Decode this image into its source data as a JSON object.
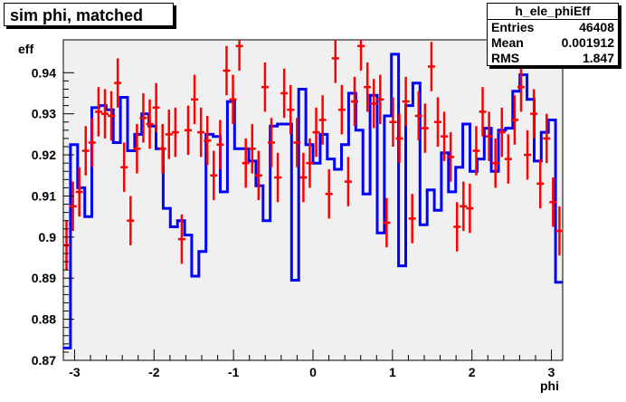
{
  "title": "sim phi, matched",
  "stats": {
    "name": "h_ele_phiEff",
    "rows": [
      {
        "label": "Entries",
        "value": "46408"
      },
      {
        "label": "Mean",
        "value": "0.001912"
      },
      {
        "label": "RMS",
        "value": "1.847"
      }
    ]
  },
  "chart_data": {
    "type": "line",
    "xlabel": "phi",
    "ylabel": "eff",
    "xlim": [
      -3.1416,
      3.1416
    ],
    "ylim": [
      0.87,
      0.948
    ],
    "grid": false,
    "xticks": [
      -3,
      -2,
      -1,
      0,
      1,
      2,
      3
    ],
    "xtick_labels": [
      "-3",
      "-2",
      "-1",
      "0",
      "1",
      "2",
      "3"
    ],
    "yticks": [
      0.87,
      0.88,
      0.89,
      0.9,
      0.91,
      0.92,
      0.93,
      0.94
    ],
    "ytick_labels": [
      "0.87",
      "0.88",
      "0.89",
      "0.9",
      "0.91",
      "0.92",
      "0.93",
      "0.94"
    ],
    "colors": {
      "histogram": "#0000ff",
      "points": "#ff0000",
      "frame_bg": "#f0f0f0"
    },
    "series": [
      {
        "kind": "step-histogram",
        "values": [
          0.873,
          0.9225,
          0.912,
          0.905,
          0.9315,
          0.932,
          0.931,
          0.923,
          0.934,
          0.921,
          0.925,
          0.93,
          0.927,
          0.9215,
          0.907,
          0.9025,
          0.904,
          0.9005,
          0.8905,
          0.8965,
          0.925,
          0.9245,
          0.911,
          0.933,
          0.9215,
          0.9215,
          0.9185,
          0.9125,
          0.904,
          0.927,
          0.9275,
          0.9275,
          0.8895,
          0.936,
          0.9225,
          0.918,
          0.925,
          0.919,
          0.9165,
          0.9225,
          0.935,
          0.926,
          0.9105,
          0.9345,
          0.901,
          0.9295,
          0.9445,
          0.893,
          0.932,
          0.9375,
          0.903,
          0.9115,
          0.9065,
          0.9205,
          0.911,
          0.917,
          0.9275,
          0.916,
          0.919,
          0.9265,
          0.916,
          0.926,
          0.9265,
          0.9355,
          0.9395,
          0.9335,
          0.9185,
          0.9255,
          0.9285,
          0.889
        ]
      },
      {
        "kind": "error-points",
        "values": [
          0.898,
          0.9075,
          0.911,
          0.921,
          0.923,
          0.9305,
          0.93,
          0.9295,
          0.9375,
          0.917,
          0.904,
          0.9215,
          0.929,
          0.9275,
          0.9315,
          0.9215,
          0.925,
          0.9255,
          0.8995,
          0.926,
          0.9335,
          0.9255,
          0.9235,
          0.915,
          0.9225,
          0.9405,
          0.9335,
          0.9465,
          0.918,
          0.9215,
          0.915,
          0.9365,
          0.923,
          0.9145,
          0.935,
          0.931,
          0.923,
          0.9145,
          0.918,
          0.9255,
          0.9285,
          0.9105,
          0.9435,
          0.931,
          0.9135,
          0.933,
          0.9465,
          0.9365,
          0.9325,
          0.9335,
          0.9035,
          0.928,
          0.924,
          0.933,
          0.9045,
          0.9295,
          0.9265,
          0.9415,
          0.928,
          0.9245,
          0.9195,
          0.9025,
          0.9075,
          0.907,
          0.921,
          0.9305,
          0.9245,
          0.918,
          0.9255,
          0.919,
          0.9285,
          0.9365,
          0.92,
          0.93,
          0.913,
          0.924,
          0.9085,
          0.9015
        ]
      }
    ]
  }
}
